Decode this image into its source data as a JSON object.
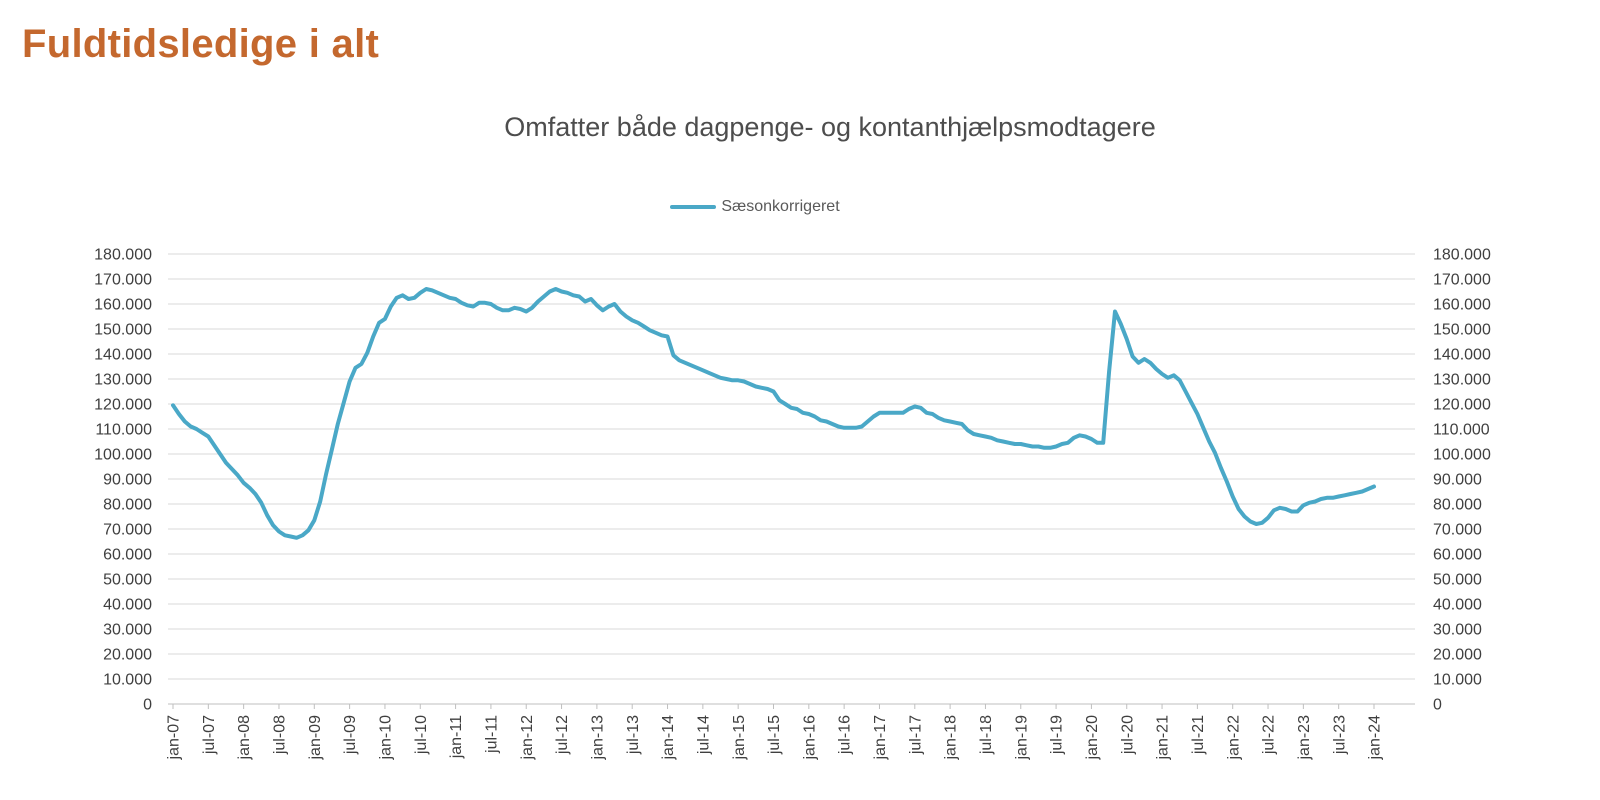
{
  "page": {
    "title": "Fuldtidsledige i alt"
  },
  "chart_data": {
    "type": "line",
    "title": "Omfatter både dagpenge- og kontanthjælpsmodtagere",
    "grid": true,
    "legend_position": "top-center",
    "x_unit": "month",
    "x_first": "jan-07",
    "x_last": "jan-24",
    "x_tick_interval_months": 6,
    "x_tick_labels": [
      "jan-07",
      "jul-07",
      "jan-08",
      "jul-08",
      "jan-09",
      "jul-09",
      "jan-10",
      "jul-10",
      "jan-11",
      "jul-11",
      "jan-12",
      "jul-12",
      "jan-13",
      "jul-13",
      "jan-14",
      "jul-14",
      "jan-15",
      "jul-15",
      "jan-16",
      "jul-16",
      "jan-17",
      "jul-17",
      "jan-18",
      "jul-18",
      "jan-19",
      "jul-19",
      "jan-20",
      "jul-20",
      "jan-21",
      "jul-21",
      "jan-22",
      "jul-22",
      "jan-23",
      "jul-23",
      "jan-24"
    ],
    "ylim": [
      0,
      180000
    ],
    "y_tick_step": 10000,
    "y_tick_labels": [
      "0",
      "10.000",
      "20.000",
      "30.000",
      "40.000",
      "50.000",
      "60.000",
      "70.000",
      "80.000",
      "90.000",
      "100.000",
      "110.000",
      "120.000",
      "130.000",
      "140.000",
      "150.000",
      "160.000",
      "170.000",
      "180.000"
    ],
    "y_axis_sides": "both",
    "values_unit": "persons (fuldtidsledige)",
    "series": [
      {
        "name": "Sæsonkorrigeret",
        "color": "#4AA8C7",
        "frequency": "monthly",
        "values": [
          119500,
          116000,
          113000,
          111000,
          110000,
          108500,
          107000,
          103500,
          100000,
          96500,
          94000,
          91500,
          88500,
          86500,
          84000,
          80500,
          75500,
          71500,
          69000,
          67500,
          67000,
          66500,
          67500,
          69500,
          73500,
          81000,
          92000,
          102000,
          112000,
          120500,
          129000,
          134500,
          136000,
          140500,
          147000,
          152500,
          154000,
          159000,
          162500,
          163500,
          162000,
          162500,
          164500,
          166000,
          165500,
          164500,
          163500,
          162500,
          162000,
          160500,
          159500,
          159000,
          160500,
          160500,
          160000,
          158500,
          157500,
          157500,
          158500,
          158000,
          157000,
          158500,
          161000,
          163000,
          165000,
          166000,
          165000,
          164500,
          163500,
          163000,
          161000,
          162000,
          159500,
          157500,
          159000,
          160000,
          157000,
          155000,
          153500,
          152500,
          151000,
          149500,
          148500,
          147500,
          147000,
          139500,
          137500,
          136500,
          135500,
          134500,
          133500,
          132500,
          131500,
          130500,
          130000,
          129500,
          129500,
          129000,
          128000,
          127000,
          126500,
          126000,
          125000,
          121500,
          120000,
          118500,
          118000,
          116500,
          116000,
          115000,
          113500,
          113000,
          112000,
          111000,
          110500,
          110500,
          110500,
          111000,
          113000,
          115000,
          116500,
          116500,
          116500,
          116500,
          116500,
          118000,
          119000,
          118500,
          116500,
          116000,
          114500,
          113500,
          113000,
          112500,
          112000,
          109500,
          108000,
          107500,
          107000,
          106500,
          105500,
          105000,
          104500,
          104000,
          104000,
          103500,
          103000,
          103000,
          102500,
          102500,
          103000,
          104000,
          104500,
          106500,
          107500,
          107000,
          106000,
          104500,
          104500,
          133000,
          157000,
          152000,
          146000,
          139000,
          136500,
          138000,
          136500,
          134000,
          132000,
          130500,
          131500,
          129500,
          125000,
          120500,
          116000,
          110500,
          105000,
          100500,
          94500,
          89000,
          83000,
          78000,
          75000,
          73000,
          72000,
          72500,
          74500,
          77500,
          78500,
          78000,
          77000,
          77000,
          79500,
          80500,
          81000,
          82000,
          82500,
          82500,
          83000,
          83500,
          84000,
          84500,
          85000,
          86000,
          87000
        ]
      }
    ]
  },
  "colors": {
    "page_title": "#C4682E",
    "chart_title_text": "#4D4D4D",
    "axis_text": "#3F3F3F",
    "gridline": "#D9D9D9",
    "axis_line": "#BFBFBF",
    "series_line": "#4AA8C7",
    "background": "#FFFFFF"
  }
}
